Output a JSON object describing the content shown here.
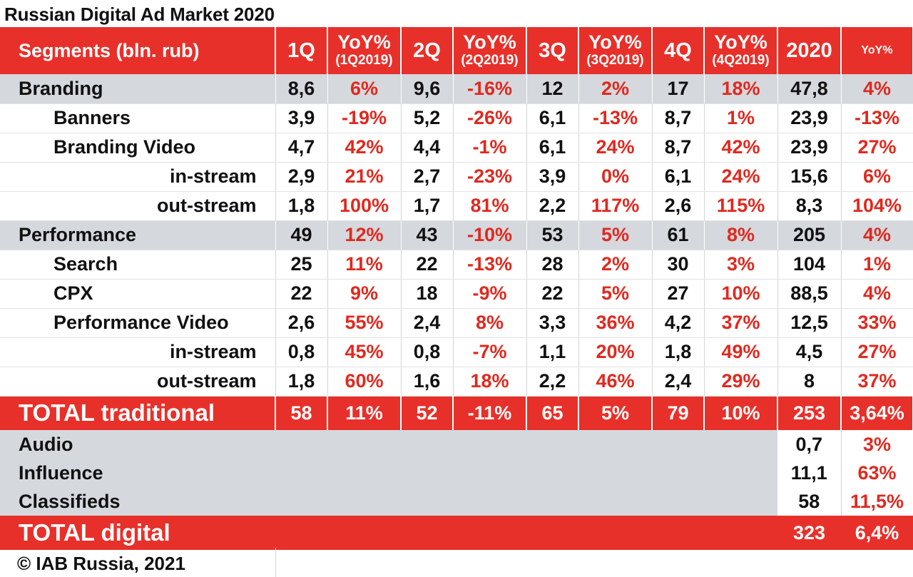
{
  "title": "Russian Digital Ad Market 2020",
  "footer": "© IAB Russia, 2021",
  "colors": {
    "accent_red": "#e8302a",
    "yoy_red": "#e0291f",
    "group_gray": "#d5d8dd"
  },
  "chart_data": {
    "type": "table",
    "title": "Russian Digital Ad Market 2020",
    "columns": [
      {
        "main": "Segments (bln. rub)",
        "sub": ""
      },
      {
        "main": "1Q",
        "sub": ""
      },
      {
        "main": "YoY%",
        "sub": "(1Q2019)"
      },
      {
        "main": "2Q",
        "sub": ""
      },
      {
        "main": "YoY%",
        "sub": "(2Q2019)"
      },
      {
        "main": "3Q",
        "sub": ""
      },
      {
        "main": "YoY%",
        "sub": "(3Q2019)"
      },
      {
        "main": "4Q",
        "sub": ""
      },
      {
        "main": "YoY%",
        "sub": "(4Q2019)"
      },
      {
        "main": "2020",
        "sub": ""
      },
      {
        "main": "YoY%",
        "sub": ""
      }
    ],
    "rows": [
      {
        "segment": "Branding",
        "level": 0,
        "group": true,
        "values": [
          "8,6",
          "6%",
          "9,6",
          "-16%",
          "12",
          "2%",
          "17",
          "18%",
          "47,8",
          "4%"
        ]
      },
      {
        "segment": "Banners",
        "level": 1,
        "group": false,
        "values": [
          "3,9",
          "-19%",
          "5,2",
          "-26%",
          "6,1",
          "-13%",
          "8,7",
          "1%",
          "23,9",
          "-13%"
        ]
      },
      {
        "segment": "Branding Video",
        "level": 1,
        "group": false,
        "values": [
          "4,7",
          "42%",
          "4,4",
          "-1%",
          "6,1",
          "24%",
          "8,7",
          "42%",
          "23,9",
          "27%"
        ]
      },
      {
        "segment": "in-stream",
        "level": 2,
        "group": false,
        "values": [
          "2,9",
          "21%",
          "2,7",
          "-23%",
          "3,9",
          "0%",
          "6,1",
          "24%",
          "15,6",
          "6%"
        ]
      },
      {
        "segment": "out-stream",
        "level": 2,
        "group": false,
        "values": [
          "1,8",
          "100%",
          "1,7",
          "81%",
          "2,2",
          "117%",
          "2,6",
          "115%",
          "8,3",
          "104%"
        ]
      },
      {
        "segment": "Performance",
        "level": 0,
        "group": true,
        "values": [
          "49",
          "12%",
          "43",
          "-10%",
          "53",
          "5%",
          "61",
          "8%",
          "205",
          "4%"
        ]
      },
      {
        "segment": "Search",
        "level": 1,
        "group": false,
        "values": [
          "25",
          "11%",
          "22",
          "-13%",
          "28",
          "2%",
          "30",
          "3%",
          "104",
          "1%"
        ]
      },
      {
        "segment": "CPX",
        "level": 1,
        "group": false,
        "values": [
          "22",
          "9%",
          "18",
          "-9%",
          "22",
          "5%",
          "27",
          "10%",
          "88,5",
          "4%"
        ]
      },
      {
        "segment": "Performance Video",
        "level": 1,
        "group": false,
        "values": [
          "2,6",
          "55%",
          "2,4",
          "8%",
          "3,3",
          "36%",
          "4,2",
          "37%",
          "12,5",
          "33%"
        ]
      },
      {
        "segment": "in-stream",
        "level": 2,
        "group": false,
        "values": [
          "0,8",
          "45%",
          "0,8",
          "-7%",
          "1,1",
          "20%",
          "1,8",
          "49%",
          "4,5",
          "27%"
        ]
      },
      {
        "segment": "out-stream",
        "level": 2,
        "group": false,
        "values": [
          "1,8",
          "60%",
          "1,6",
          "18%",
          "2,2",
          "46%",
          "2,4",
          "29%",
          "8",
          "37%"
        ]
      }
    ],
    "total_traditional": {
      "label": "TOTAL traditional",
      "values": [
        "58",
        "11%",
        "52",
        "-11%",
        "65",
        "5%",
        "79",
        "10%",
        "253",
        "3,64%"
      ]
    },
    "other_rows": [
      {
        "segment": "Audio",
        "total": "0,7",
        "yoy": "3%"
      },
      {
        "segment": "Influence",
        "total": "11,1",
        "yoy": "63%"
      },
      {
        "segment": "Classifieds",
        "total": "58",
        "yoy": "11,5%"
      }
    ],
    "total_digital": {
      "label": "TOTAL digital",
      "total": "323",
      "yoy": "6,4%"
    }
  }
}
